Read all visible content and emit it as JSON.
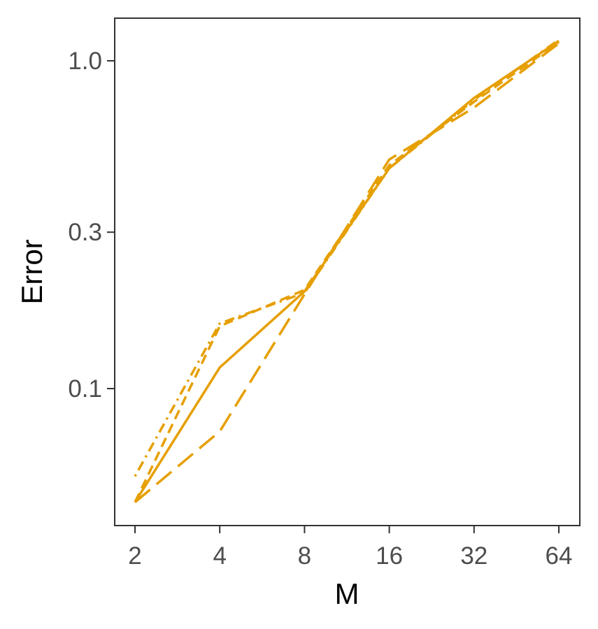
{
  "chart_data": {
    "type": "line",
    "title": "",
    "xlabel": "M",
    "ylabel": "Error",
    "x_scale": "log2",
    "y_scale": "log10",
    "x": [
      2,
      4,
      8,
      16,
      32,
      64
    ],
    "x_ticks": [
      "2",
      "4",
      "8",
      "16",
      "32",
      "64"
    ],
    "y_ticks": [
      {
        "value": 0.1,
        "label": "0.1"
      },
      {
        "value": 0.3,
        "label": "0.3"
      },
      {
        "value": 1.0,
        "label": "1.0"
      }
    ],
    "ylim": [
      0.034,
      1.4
    ],
    "grid": false,
    "legend": "none",
    "color": "#e69f00",
    "series": [
      {
        "dash": "solid",
        "values": [
          0.045,
          0.116,
          0.198,
          0.47,
          0.77,
          1.15
        ]
      },
      {
        "dash": "long-dash",
        "values": [
          0.045,
          0.074,
          0.194,
          0.5,
          0.72,
          1.13
        ]
      },
      {
        "dash": "dash",
        "values": [
          0.045,
          0.155,
          0.2,
          0.48,
          0.75,
          1.14
        ]
      },
      {
        "dash": "dot-dash",
        "values": [
          0.054,
          0.158,
          0.196,
          0.47,
          0.76,
          1.16
        ]
      }
    ]
  }
}
